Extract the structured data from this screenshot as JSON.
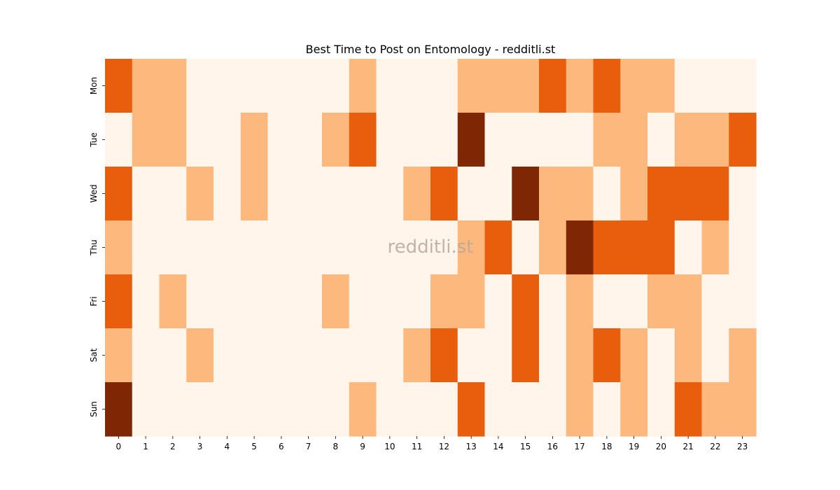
{
  "chart_data": {
    "type": "heatmap",
    "title": "Best Time to Post on Entomology - redditli.st",
    "watermark": "redditli.st",
    "xlabel": "",
    "ylabel": "",
    "x_categories": [
      "0",
      "1",
      "2",
      "3",
      "4",
      "5",
      "6",
      "7",
      "8",
      "9",
      "10",
      "11",
      "12",
      "13",
      "14",
      "15",
      "16",
      "17",
      "18",
      "19",
      "20",
      "21",
      "22",
      "23"
    ],
    "y_categories": [
      "Mon",
      "Tue",
      "Wed",
      "Thu",
      "Fri",
      "Sat",
      "Sun"
    ],
    "values": [
      [
        2,
        1,
        1,
        0,
        0,
        0,
        0,
        0,
        0,
        1,
        0,
        0,
        0,
        1,
        1,
        1,
        2,
        1,
        2,
        1,
        1,
        0,
        0,
        0
      ],
      [
        0,
        1,
        1,
        0,
        0,
        1,
        0,
        0,
        1,
        2,
        0,
        0,
        0,
        3,
        0,
        0,
        0,
        0,
        1,
        1,
        0,
        1,
        1,
        2
      ],
      [
        2,
        0,
        0,
        1,
        0,
        1,
        0,
        0,
        0,
        0,
        0,
        1,
        2,
        0,
        0,
        3,
        1,
        1,
        0,
        1,
        2,
        2,
        2,
        0
      ],
      [
        1,
        0,
        0,
        0,
        0,
        0,
        0,
        0,
        0,
        0,
        0,
        0,
        0,
        1,
        2,
        0,
        1,
        3,
        2,
        2,
        2,
        0,
        1,
        0
      ],
      [
        2,
        0,
        1,
        0,
        0,
        0,
        0,
        0,
        1,
        0,
        0,
        0,
        1,
        1,
        0,
        2,
        0,
        1,
        0,
        0,
        1,
        1,
        0,
        0
      ],
      [
        1,
        0,
        0,
        1,
        0,
        0,
        0,
        0,
        0,
        0,
        0,
        1,
        2,
        0,
        0,
        2,
        0,
        1,
        2,
        1,
        0,
        1,
        0,
        1
      ],
      [
        3,
        0,
        0,
        0,
        0,
        0,
        0,
        0,
        0,
        1,
        0,
        0,
        0,
        2,
        0,
        0,
        0,
        1,
        0,
        1,
        0,
        2,
        1,
        1
      ]
    ],
    "colorscale": [
      "#fff5eb",
      "#fdb97d",
      "#e95e0d",
      "#7f2704"
    ],
    "colorbar": false,
    "grid": false
  }
}
